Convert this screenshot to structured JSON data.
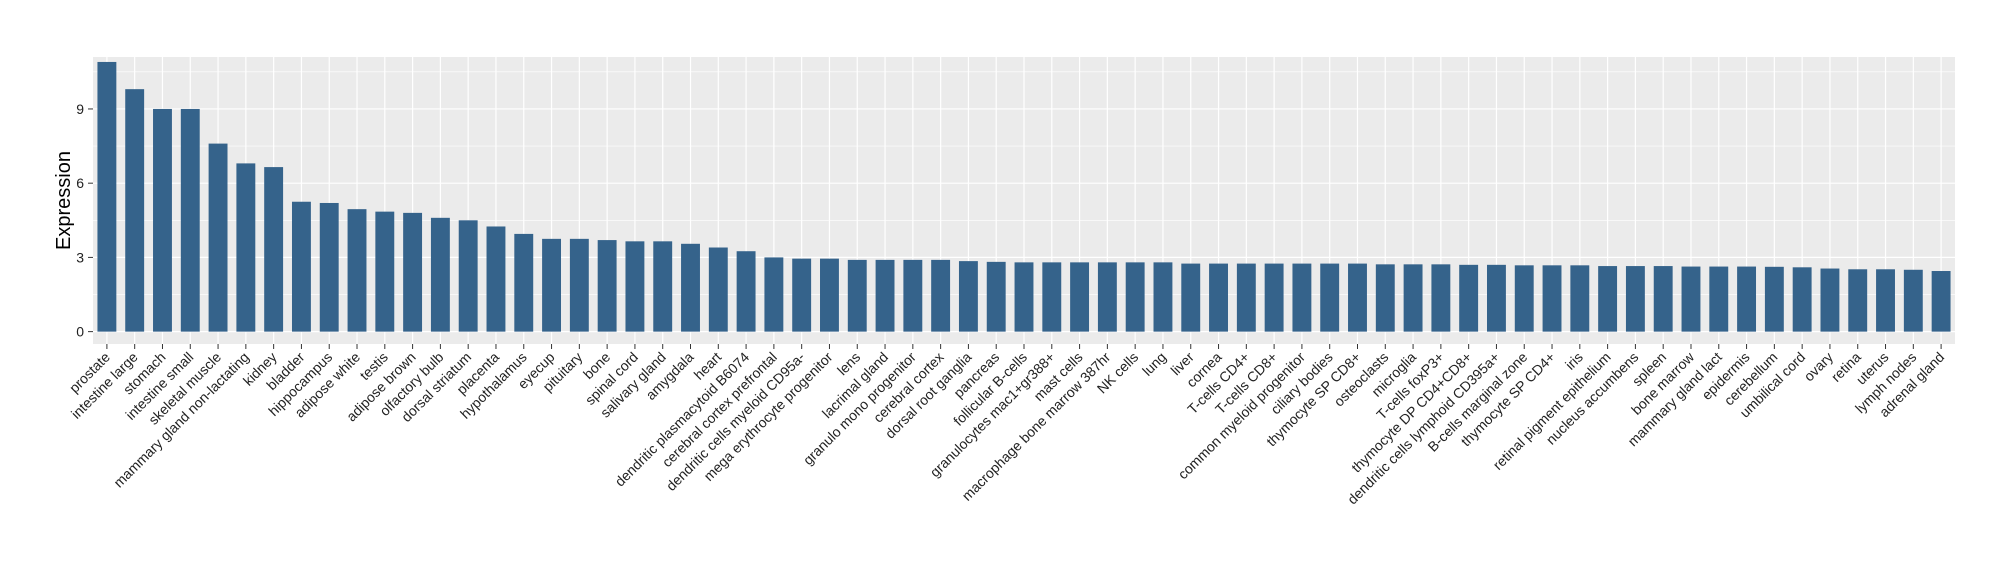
{
  "chart_data": {
    "type": "bar",
    "title": "",
    "xlabel": "",
    "ylabel": "Expression",
    "ylim": [
      -0.5,
      11.1
    ],
    "yticks": [
      0,
      3,
      6,
      9
    ],
    "grid": true,
    "panel_background": "#EBEBEB",
    "bar_color": "#35638B",
    "categories": [
      "prostate",
      "intestine large",
      "stomach",
      "intestine small",
      "skeletal muscle",
      "mammary gland non-lactating",
      "kidney",
      "bladder",
      "hippocampus",
      "adipose white",
      "testis",
      "adipose brown",
      "olfactory bulb",
      "dorsal striatum",
      "placenta",
      "hypothalamus",
      "eyecup",
      "pituitary",
      "bone",
      "spinal cord",
      "salivary gland",
      "amygdala",
      "heart",
      "dendritic plasmacytoid B6074",
      "cerebral cortex prefrontal",
      "dendritic cells myeloid CD95a-",
      "mega erythrocyte progenitor",
      "lens",
      "lacrimal gland",
      "granulo mono progenitor",
      "cerebral cortex",
      "dorsal root ganglia",
      "pancreas",
      "follicular B-cells",
      "granulocytes mac1+gr388+",
      "mast cells",
      "macrophage bone marrow 387hr",
      "NK cells",
      "lung",
      "liver",
      "cornea",
      "T-cells CD4+",
      "T-cells CD8+",
      "common myeloid progenitor",
      "ciliary bodies",
      "thymocyte SP CD8+",
      "osteoclasts",
      "microglia",
      "T-cells foxP3+",
      "thymocyte DP CD4+CD8+",
      "dendritic cells lymphoid CD395a+",
      "B-cells marginal zone",
      "thymocyte SP CD4+",
      "iris",
      "retinal pigment epithelium",
      "nucleus accumbens",
      "spleen",
      "bone marrow",
      "mammary gland lact",
      "epidermis",
      "cerebellum",
      "umbilical cord",
      "ovary",
      "retina",
      "uterus",
      "lymph nodes",
      "adrenal gland"
    ],
    "values": [
      10.9,
      9.8,
      9.0,
      9.0,
      7.6,
      6.8,
      6.65,
      5.25,
      5.2,
      4.95,
      4.85,
      4.8,
      4.6,
      4.5,
      4.25,
      3.95,
      3.75,
      3.75,
      3.7,
      3.65,
      3.65,
      3.55,
      3.4,
      3.25,
      3.0,
      2.95,
      2.95,
      2.9,
      2.9,
      2.9,
      2.9,
      2.85,
      2.82,
      2.8,
      2.8,
      2.8,
      2.8,
      2.8,
      2.8,
      2.75,
      2.75,
      2.75,
      2.75,
      2.75,
      2.75,
      2.75,
      2.72,
      2.72,
      2.72,
      2.7,
      2.7,
      2.68,
      2.68,
      2.68,
      2.65,
      2.65,
      2.65,
      2.63,
      2.63,
      2.63,
      2.62,
      2.6,
      2.55,
      2.52,
      2.52,
      2.5,
      2.45
    ]
  }
}
